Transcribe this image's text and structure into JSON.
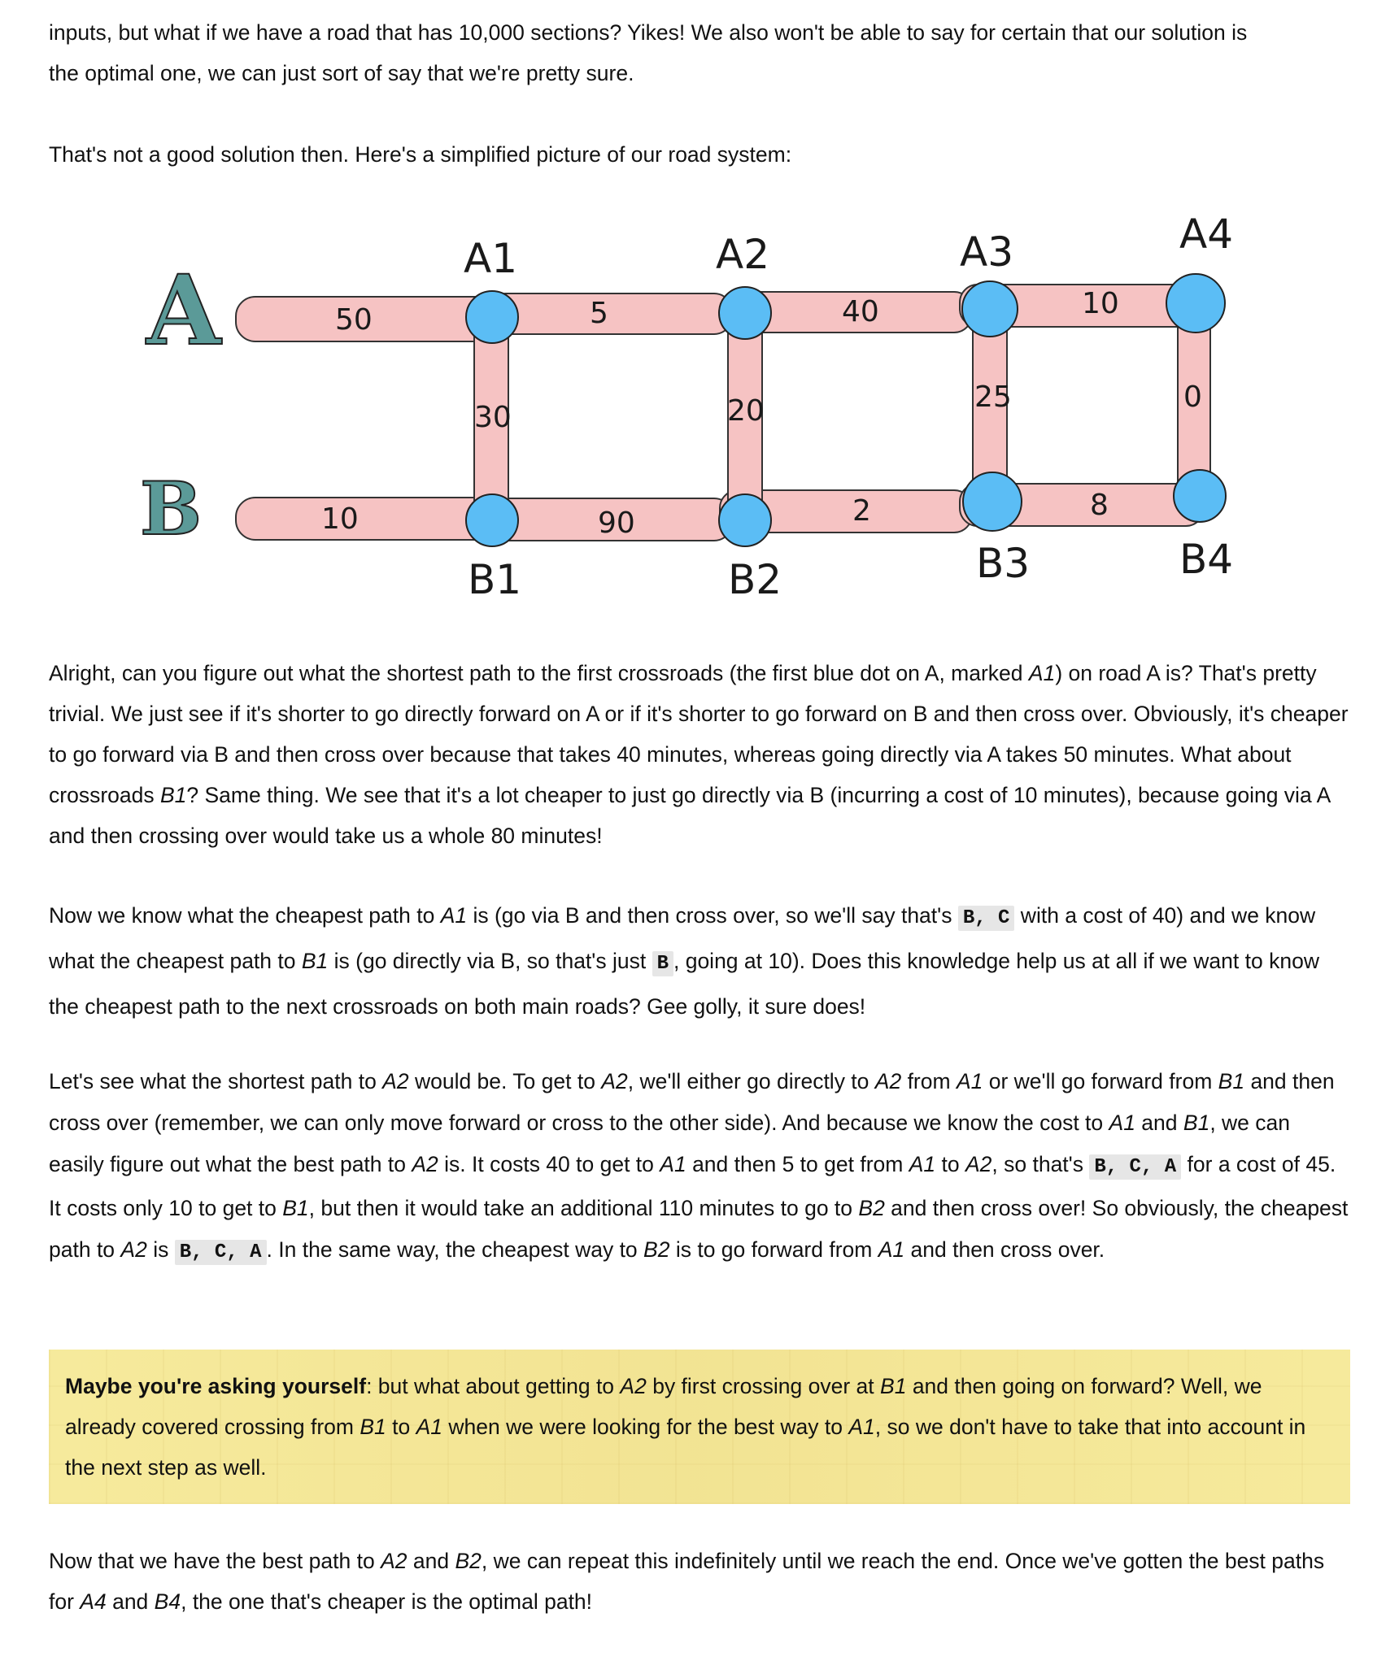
{
  "paragraphs": {
    "p1": {
      "line1": "inputs, but what if we have a road that has 10,000 sections? Yikes! We also won't be able to say for certain that our solution is",
      "line2": "the optimal one, we can just sort of say that we're pretty sure."
    },
    "p2": "That's not a good solution then. Here's a simplified picture of our road system:",
    "p3": {
      "t1": "Alright, can you figure out what the shortest path to the first crossroads (the first blue dot on A, marked ",
      "a1": "A1",
      "t2": ") on road A is? That's pretty trivial. We just see if it's shorter to go directly forward on A or if it's shorter to go forward on B and then cross over. Obviously, it's cheaper to go forward via B and then cross over because that takes 40 minutes, whereas going directly via A takes 50 minutes. What about crossroads ",
      "b1": "B1",
      "t3": "? Same thing. We see that it's a lot cheaper to just go directly via B (incurring a cost of 10 minutes), because going via A and then crossing over would take us a whole 80 minutes!"
    },
    "p4": {
      "t1": "Now we know what the cheapest path to ",
      "a1": "A1",
      "t2": " is (go via B and then cross over, so we'll say that's ",
      "code1": "B, C",
      "t3": " with a cost of 40) and we know what the cheapest path to ",
      "b1": "B1",
      "t4": " is (go directly via B, so that's just ",
      "code2": "B",
      "t5": ", going at 10). Does this knowledge help us at all if we want to know the cheapest path to the next crossroads on both main roads? Gee golly, it sure does!"
    },
    "p5": {
      "t1": "Let's see what the shortest path to ",
      "a2a": "A2",
      "t2": " would be. To get to ",
      "a2b": "A2",
      "t3": ", we'll either go directly to ",
      "a2c": "A2",
      "t4": " from ",
      "a1a": "A1",
      "t5": " or we'll go forward from ",
      "b1a": "B1",
      "t6": " and then cross over (remember, we can only move forward or cross to the other side). And because we know the cost to ",
      "a1b": "A1",
      "t7": " and ",
      "b1b": "B1",
      "t8": ", we can easily figure out what the best path to ",
      "a2d": "A2",
      "t9": " is. It costs 40 to get to ",
      "a1c": "A1",
      "t10": " and then 5 to get from ",
      "a1d": "A1",
      "t11": " to ",
      "a2e": "A2",
      "t12": ", so that's ",
      "code1": "B, C, A",
      "t13": " for a cost of 45. It costs only 10 to get to ",
      "b1c": "B1",
      "t14": ", but then it would take an additional 110 minutes to go to ",
      "b2a": "B2",
      "t15": " and then cross over! So obviously, the cheapest path to ",
      "a2f": "A2",
      "t16": " is ",
      "code2": "B, C, A",
      "t17": ". In the same way, the cheapest way to ",
      "b2b": "B2",
      "t18": " is to go forward from ",
      "a1e": "A1",
      "t19": " and then cross over."
    },
    "note": {
      "bold": "Maybe you're asking yourself",
      "t1": ": but what about getting to ",
      "a2": "A2",
      "t2": " by first crossing over at ",
      "b1": "B1",
      "t3": " and then going on forward? Well, we already covered crossing from ",
      "b1b": "B1",
      "t4": " to ",
      "a1": "A1",
      "t5": " when we were looking for the best way to ",
      "a1b": "A1",
      "t6": ", so we don't have to take that into account in the next step as well."
    },
    "p6": {
      "t1": "Now that we have the best path to ",
      "a2": "A2",
      "t2": " and ",
      "b2": "B2",
      "t3": ", we can repeat this indefinitely until we reach the end. Once we've gotten the best paths for ",
      "a4": "A4",
      "t4": " and ",
      "b4": "B4",
      "t5": ", the one that's cheaper is the optimal path!"
    }
  },
  "diagram": {
    "road_a": "A",
    "road_b": "B",
    "node_labels": {
      "a1": "A1",
      "a2": "A2",
      "a3": "A3",
      "a4": "A4",
      "b1": "B1",
      "b2": "B2",
      "b3": "B3",
      "b4": "B4"
    },
    "road_a_costs": [
      "50",
      "5",
      "40",
      "10"
    ],
    "road_b_costs": [
      "10",
      "90",
      "2",
      "8"
    ],
    "crossing_costs": [
      "30",
      "20",
      "25",
      "0"
    ],
    "colors": {
      "road": "#f6c3c3",
      "node": "#5bbdf5",
      "letter_fill": "#5b9a98",
      "note_bg": "#f6ea9c"
    }
  }
}
